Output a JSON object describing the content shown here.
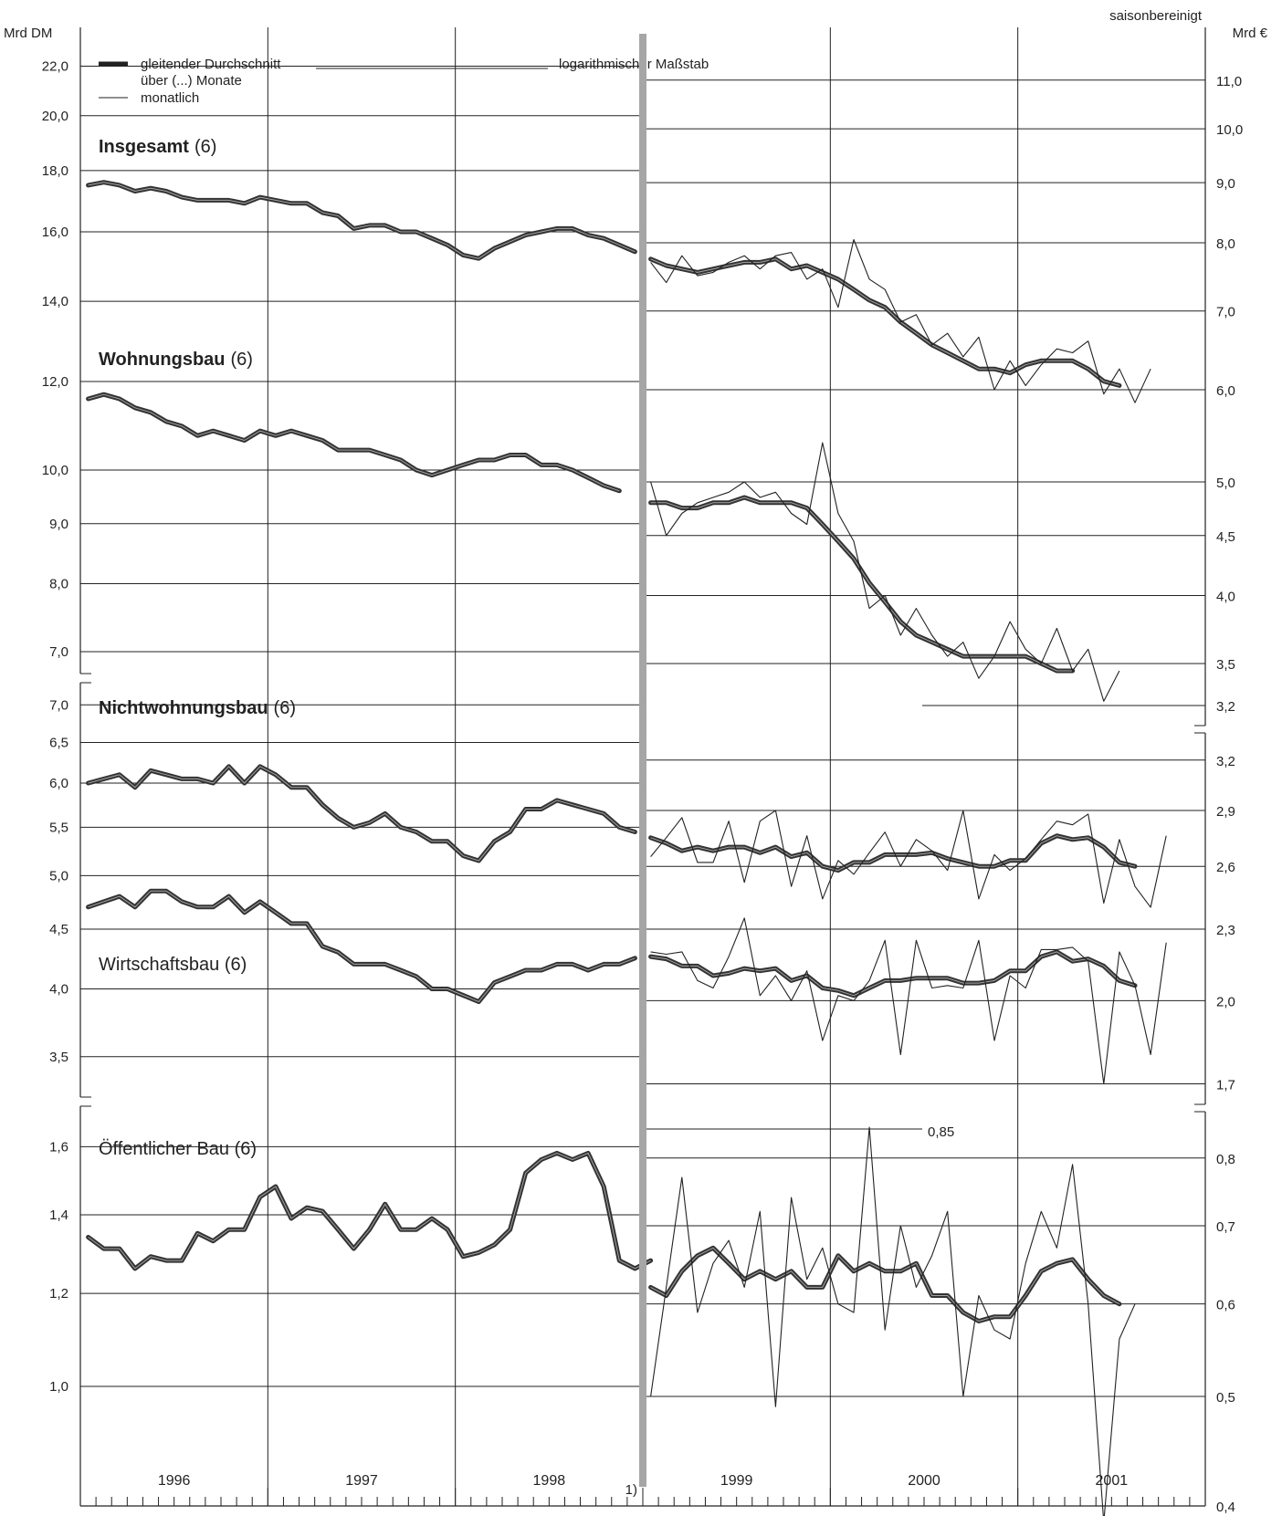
{
  "header": {
    "left_unit": "Mrd DM",
    "right_unit": "Mrd €",
    "note": "saisonbereinigt",
    "scale_note": "logarithmischer Maßstab",
    "break_marker": "1)"
  },
  "legend": {
    "thick_label_1": "gleitender Durchschnitt",
    "thick_label_2": "über (...) Monate",
    "thin_label": "monatlich"
  },
  "years": [
    "1996",
    "1997",
    "1998",
    "1999",
    "2000",
    "2001"
  ],
  "colors": {
    "moving_average": "#333333",
    "monthly": "#222222",
    "break_bar": "#a6a6a6",
    "grid": "#222222"
  },
  "panel_labels": {
    "insgesamt": "Insgesamt",
    "insgesamt_n": "(6)",
    "wohnungsbau": "Wohnungsbau",
    "wohnungsbau_n": "(6)",
    "nichtwohnungsbau": "Nichtwohnungsbau",
    "nichtwohnungsbau_n": "(6)",
    "wirtschaftsbau": "Wirtschaftsbau (6)",
    "oeffentlicher_bau": "Öffentlicher Bau (6)",
    "annotation_085": "0,85"
  },
  "chart_data": [
    {
      "type": "line",
      "title": "Insgesamt (6)",
      "y_scale": "log",
      "x_range": [
        "1996-01",
        "2001-12"
      ],
      "y_ticks_dm": [
        "22,0",
        "20,0",
        "18,0",
        "16,0",
        "14,0",
        "12,0"
      ],
      "y_ticks_eur": [
        "11,0",
        "10,0",
        "9,0",
        "8,0",
        "7,0",
        "6,0"
      ],
      "series": [
        {
          "name": "gleitender Durchschnitt über (...) Monate",
          "unit": "Mrd DM",
          "start": "1996-01",
          "values": [
            17.5,
            17.6,
            17.5,
            17.3,
            17.4,
            17.3,
            17.1,
            17.0,
            17.0,
            17.0,
            16.9,
            17.1,
            17.0,
            16.9,
            16.9,
            16.6,
            16.5,
            16.1,
            16.2,
            16.2,
            16.0,
            16.0,
            15.8,
            15.6,
            15.3,
            15.2,
            15.5,
            15.7,
            15.9,
            16.0,
            16.1,
            16.1,
            15.9,
            15.8,
            15.6,
            15.4
          ]
        },
        {
          "name": "gleitender Durchschnitt über (...) Monate",
          "unit": "Mrd €",
          "start": "1999-01",
          "values": [
            7.75,
            7.65,
            7.6,
            7.55,
            7.6,
            7.65,
            7.7,
            7.7,
            7.75,
            7.6,
            7.65,
            7.55,
            7.45,
            7.3,
            7.15,
            7.05,
            6.85,
            6.7,
            6.55,
            6.45,
            6.35,
            6.25,
            6.25,
            6.2,
            6.3,
            6.35,
            6.35,
            6.35,
            6.25,
            6.1,
            6.05
          ]
        },
        {
          "name": "monatlich",
          "unit": "Mrd €",
          "start": "1999-01",
          "values": [
            7.7,
            7.4,
            7.8,
            7.5,
            7.55,
            7.7,
            7.8,
            7.6,
            7.8,
            7.85,
            7.45,
            7.6,
            7.05,
            8.05,
            7.45,
            7.3,
            6.85,
            6.95,
            6.55,
            6.7,
            6.4,
            6.65,
            6.0,
            6.35,
            6.05,
            6.3,
            6.5,
            6.45,
            6.6,
            5.95,
            6.25,
            5.85,
            6.25
          ]
        }
      ]
    },
    {
      "type": "line",
      "title": "Wohnungsbau (6)",
      "y_scale": "log",
      "x_range": [
        "1996-01",
        "2001-12"
      ],
      "y_ticks_dm": [
        "12,0",
        "10,0",
        "9,0",
        "8,0",
        "7,0"
      ],
      "y_ticks_eur": [
        "6,0",
        "5,0",
        "4,5",
        "4,0",
        "3,5"
      ],
      "series": [
        {
          "name": "gleitender Durchschnitt über (...) Monate",
          "unit": "Mrd DM",
          "start": "1996-01",
          "values": [
            11.5,
            11.6,
            11.5,
            11.3,
            11.2,
            11.0,
            10.9,
            10.7,
            10.8,
            10.7,
            10.6,
            10.8,
            10.7,
            10.8,
            10.7,
            10.6,
            10.4,
            10.4,
            10.4,
            10.3,
            10.2,
            10.0,
            9.9,
            10.0,
            10.1,
            10.2,
            10.2,
            10.3,
            10.3,
            10.1,
            10.1,
            10.0,
            9.85,
            9.7,
            9.6
          ]
        },
        {
          "name": "gleitender Durchschnitt über (...) Monate",
          "unit": "Mrd €",
          "start": "1999-01",
          "values": [
            4.8,
            4.8,
            4.75,
            4.75,
            4.8,
            4.8,
            4.85,
            4.8,
            4.8,
            4.8,
            4.75,
            4.6,
            4.45,
            4.3,
            4.1,
            3.95,
            3.8,
            3.7,
            3.65,
            3.6,
            3.55,
            3.55,
            3.55,
            3.55,
            3.55,
            3.5,
            3.45,
            3.45
          ]
        },
        {
          "name": "monatlich",
          "unit": "Mrd €",
          "start": "1999-01",
          "values": [
            5.0,
            4.5,
            4.7,
            4.8,
            4.85,
            4.9,
            5.0,
            4.85,
            4.9,
            4.7,
            4.6,
            5.4,
            4.7,
            4.45,
            3.9,
            4.0,
            3.7,
            3.9,
            3.7,
            3.55,
            3.65,
            3.4,
            3.55,
            3.8,
            3.6,
            3.5,
            3.75,
            3.45,
            3.6,
            3.25,
            3.45
          ]
        }
      ]
    },
    {
      "type": "line",
      "title": "Nichtwohnungsbau (6)",
      "y_scale": "log",
      "x_range": [
        "1996-01",
        "2001-12"
      ],
      "y_ticks_dm": [
        "7,0",
        "6,5",
        "6,0",
        "5,5",
        "5,0",
        "4,5"
      ],
      "y_ticks_eur": [
        "3,2",
        "3,2",
        "2,9",
        "2,6",
        "2,3"
      ],
      "series": [
        {
          "name": "gleitender Durchschnitt über (...) Monate",
          "unit": "Mrd DM",
          "start": "1996-01",
          "values": [
            6.0,
            6.05,
            6.1,
            5.95,
            6.15,
            6.1,
            6.05,
            6.05,
            6.0,
            6.2,
            6.0,
            6.2,
            6.1,
            5.95,
            5.95,
            5.75,
            5.6,
            5.5,
            5.55,
            5.65,
            5.5,
            5.45,
            5.35,
            5.35,
            5.2,
            5.15,
            5.35,
            5.45,
            5.7,
            5.7,
            5.8,
            5.75,
            5.7,
            5.65,
            5.5,
            5.45
          ]
        },
        {
          "name": "gleitender Durchschnitt über (...) Monate",
          "unit": "Mrd €",
          "start": "1999-01",
          "values": [
            2.75,
            2.72,
            2.68,
            2.7,
            2.68,
            2.7,
            2.7,
            2.67,
            2.7,
            2.65,
            2.67,
            2.6,
            2.58,
            2.62,
            2.62,
            2.66,
            2.66,
            2.66,
            2.67,
            2.64,
            2.62,
            2.6,
            2.6,
            2.63,
            2.63,
            2.72,
            2.76,
            2.74,
            2.75,
            2.7,
            2.62,
            2.6
          ]
        },
        {
          "name": "monatlich",
          "unit": "Mrd €",
          "start": "1999-01",
          "values": [
            2.65,
            2.75,
            2.86,
            2.62,
            2.62,
            2.84,
            2.52,
            2.84,
            2.9,
            2.5,
            2.76,
            2.44,
            2.63,
            2.56,
            2.67,
            2.78,
            2.6,
            2.74,
            2.68,
            2.58,
            2.9,
            2.44,
            2.66,
            2.58,
            2.64,
            2.74,
            2.84,
            2.82,
            2.88,
            2.42,
            2.74,
            2.5,
            2.4,
            2.76
          ]
        }
      ]
    },
    {
      "type": "line",
      "title": "Wirtschaftsbau (6)",
      "y_scale": "log",
      "x_range": [
        "1996-01",
        "2001-12"
      ],
      "y_ticks_dm": [
        "4,5",
        "4,0",
        "3,5"
      ],
      "y_ticks_eur": [
        "2,3",
        "2,0",
        "1,7"
      ],
      "series": [
        {
          "name": "gleitender Durchschnitt über (...) Monate",
          "unit": "Mrd DM",
          "start": "1996-01",
          "values": [
            4.7,
            4.75,
            4.8,
            4.7,
            4.85,
            4.85,
            4.75,
            4.7,
            4.7,
            4.8,
            4.65,
            4.75,
            4.65,
            4.55,
            4.55,
            4.35,
            4.3,
            4.2,
            4.2,
            4.2,
            4.15,
            4.1,
            4.0,
            4.0,
            3.95,
            3.9,
            4.05,
            4.1,
            4.15,
            4.15,
            4.2,
            4.2,
            4.15,
            4.2,
            4.2,
            4.25
          ]
        },
        {
          "name": "gleitender Durchschnitt über (...) Monate",
          "unit": "Mrd €",
          "start": "1999-01",
          "values": [
            2.18,
            2.17,
            2.14,
            2.14,
            2.1,
            2.11,
            2.13,
            2.12,
            2.13,
            2.08,
            2.1,
            2.05,
            2.04,
            2.02,
            2.05,
            2.08,
            2.08,
            2.09,
            2.09,
            2.09,
            2.07,
            2.07,
            2.08,
            2.12,
            2.12,
            2.18,
            2.2,
            2.16,
            2.17,
            2.14,
            2.08,
            2.06
          ]
        },
        {
          "name": "monatlich",
          "unit": "Mrd €",
          "start": "1999-01",
          "values": [
            2.2,
            2.19,
            2.2,
            2.08,
            2.05,
            2.18,
            2.35,
            2.02,
            2.1,
            2.0,
            2.12,
            1.85,
            2.02,
            2.0,
            2.08,
            2.25,
            1.8,
            2.25,
            2.05,
            2.06,
            2.05,
            2.25,
            1.85,
            2.1,
            2.05,
            2.21,
            2.21,
            2.22,
            2.16,
            1.7,
            2.2,
            2.06,
            1.8,
            2.24
          ]
        }
      ]
    },
    {
      "type": "line",
      "title": "Öffentlicher Bau (6)",
      "y_scale": "log",
      "x_range": [
        "1996-01",
        "2001-12"
      ],
      "y_ticks_dm": [
        "1,6",
        "1,4",
        "1,2",
        "1,0"
      ],
      "y_ticks_eur": [
        "0,8",
        "0,7",
        "0,6",
        "0,5",
        "0,4"
      ],
      "annotation": "0,85",
      "series": [
        {
          "name": "gleitender Durchschnitt über (...) Monate",
          "unit": "Mrd DM",
          "start": "1996-01",
          "values": [
            1.34,
            1.31,
            1.31,
            1.26,
            1.29,
            1.28,
            1.28,
            1.35,
            1.33,
            1.36,
            1.36,
            1.45,
            1.48,
            1.39,
            1.42,
            1.41,
            1.36,
            1.31,
            1.36,
            1.43,
            1.36,
            1.36,
            1.39,
            1.36,
            1.29,
            1.3,
            1.32,
            1.36,
            1.52,
            1.56,
            1.58,
            1.56,
            1.58,
            1.48,
            1.28,
            1.26,
            1.28
          ]
        },
        {
          "name": "gleitender Durchschnitt über (...) Monate",
          "unit": "Mrd €",
          "start": "1999-01",
          "values": [
            0.62,
            0.61,
            0.64,
            0.66,
            0.67,
            0.65,
            0.63,
            0.64,
            0.63,
            0.64,
            0.62,
            0.62,
            0.66,
            0.64,
            0.65,
            0.64,
            0.64,
            0.65,
            0.61,
            0.61,
            0.59,
            0.58,
            0.585,
            0.585,
            0.61,
            0.64,
            0.65,
            0.655,
            0.63,
            0.61,
            0.6
          ]
        },
        {
          "name": "monatlich",
          "unit": "Mrd €",
          "start": "1999-01",
          "values": [
            0.5,
            0.62,
            0.77,
            0.59,
            0.65,
            0.68,
            0.62,
            0.72,
            0.49,
            0.74,
            0.63,
            0.67,
            0.6,
            0.59,
            0.85,
            0.57,
            0.7,
            0.62,
            0.66,
            0.72,
            0.5,
            0.61,
            0.57,
            0.56,
            0.65,
            0.72,
            0.67,
            0.79,
            0.6,
            0.39,
            0.56,
            0.6
          ]
        }
      ]
    }
  ]
}
